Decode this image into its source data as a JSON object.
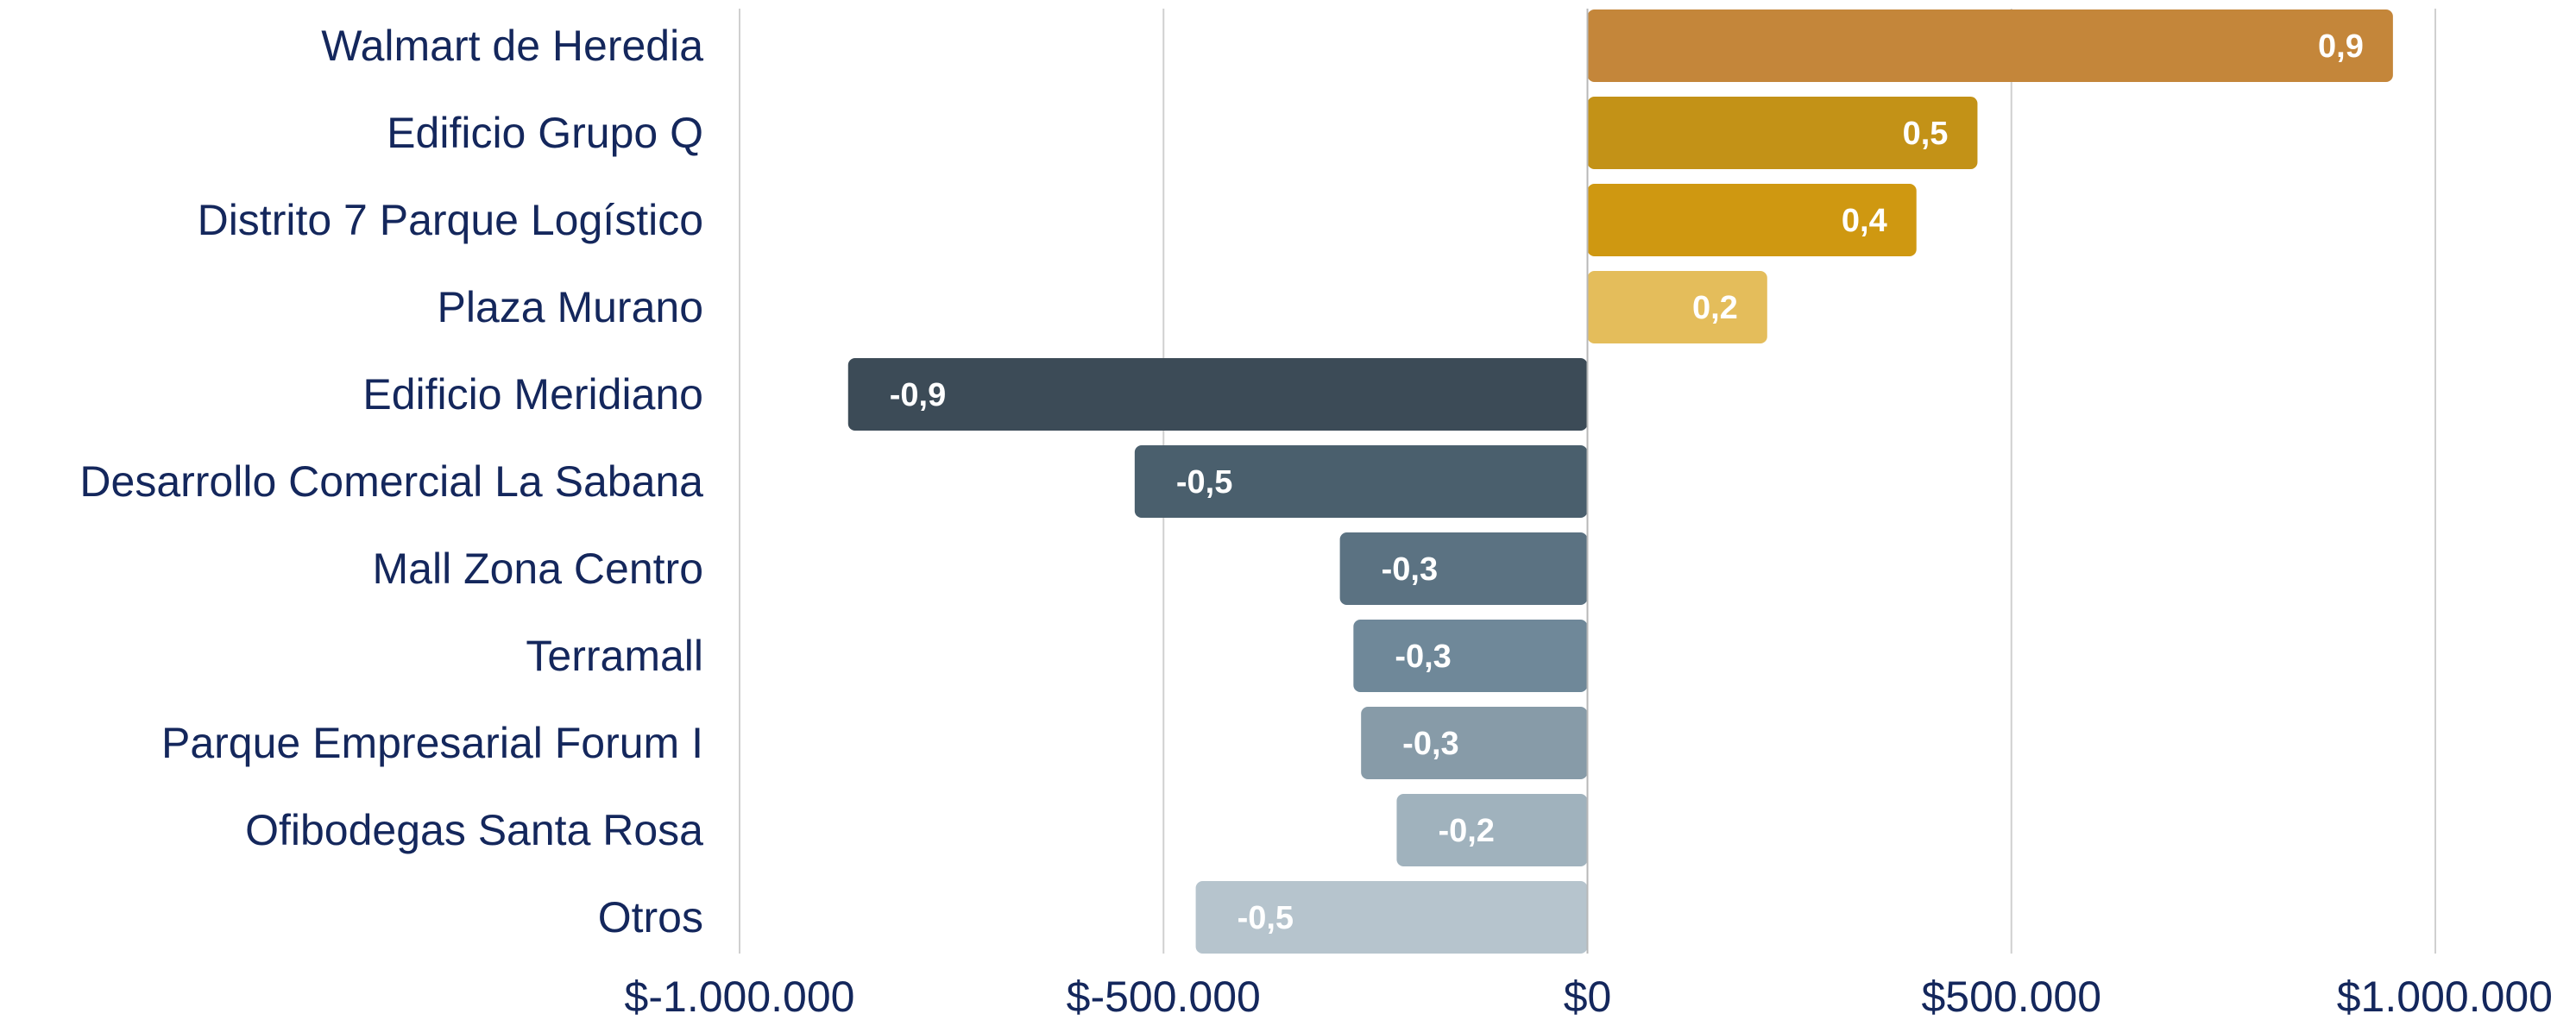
{
  "chart_data": {
    "type": "bar",
    "orientation": "horizontal",
    "categories": [
      "Walmart de Heredia",
      "Edificio Grupo Q",
      "Distrito 7 Parque Logístico",
      "Plaza Murano",
      "Edificio Meridiano",
      "Desarrollo Comercial La Sabana",
      "Mall Zona Centro",
      "Terramall",
      "Parque Empresarial Forum I",
      "Ofibodegas Santa Rosa",
      "Otros"
    ],
    "values": [
      950000,
      460000,
      388000,
      212000,
      -872000,
      -534000,
      -292000,
      -276000,
      -267000,
      -225000,
      -462000
    ],
    "data_labels": [
      "0,9",
      "0,5",
      "0,4",
      "0,2",
      "-0,9",
      "-0,5",
      "-0,3",
      "-0,3",
      "-0,3",
      "-0,2",
      "-0,5"
    ],
    "colors": [
      "#c4863a",
      "#c39217",
      "#cf9811",
      "#e4bd5b",
      "#3c4b57",
      "#4a5f6d",
      "#5b7282",
      "#6f8899",
      "#879ba8",
      "#a0b2bd",
      "#b6c4cd"
    ],
    "x_ticks": [
      -1000000,
      -500000,
      0,
      500000,
      1000000
    ],
    "x_tick_labels": [
      "$-1.000.000",
      "$-500.000",
      "$0",
      "$500.000",
      "$1.000.000"
    ],
    "xlim": [
      -1000000,
      1000000
    ],
    "grid": true,
    "title": "",
    "xlabel": "",
    "ylabel": ""
  }
}
